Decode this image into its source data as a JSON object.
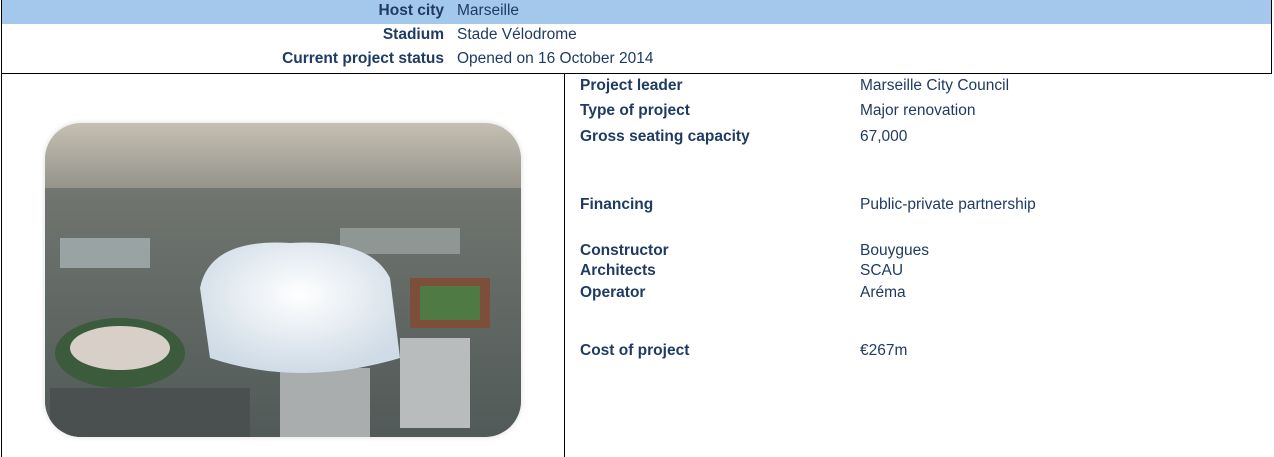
{
  "header": {
    "rows": [
      {
        "label": "Host city",
        "value": "Marseille"
      },
      {
        "label": "Stadium",
        "value": "Stade Vélodrome"
      },
      {
        "label": "Current project status",
        "value": "Opened on 16 October 2014"
      }
    ]
  },
  "details": {
    "rows": [
      {
        "label": "Project leader",
        "value": "Marseille City Council"
      },
      {
        "label": "Type of project",
        "value": "Major renovation"
      },
      {
        "label": "Gross seating capacity",
        "value": "67,000"
      },
      {
        "label": "Financing",
        "value": "Public-private partnership"
      },
      {
        "label": "Constructor",
        "value": "Bouygues"
      },
      {
        "label": "Architects",
        "value": "SCAU"
      },
      {
        "label": "Operator",
        "value": "Aréma"
      },
      {
        "label": "Cost of project",
        "value": "€267m"
      }
    ]
  }
}
